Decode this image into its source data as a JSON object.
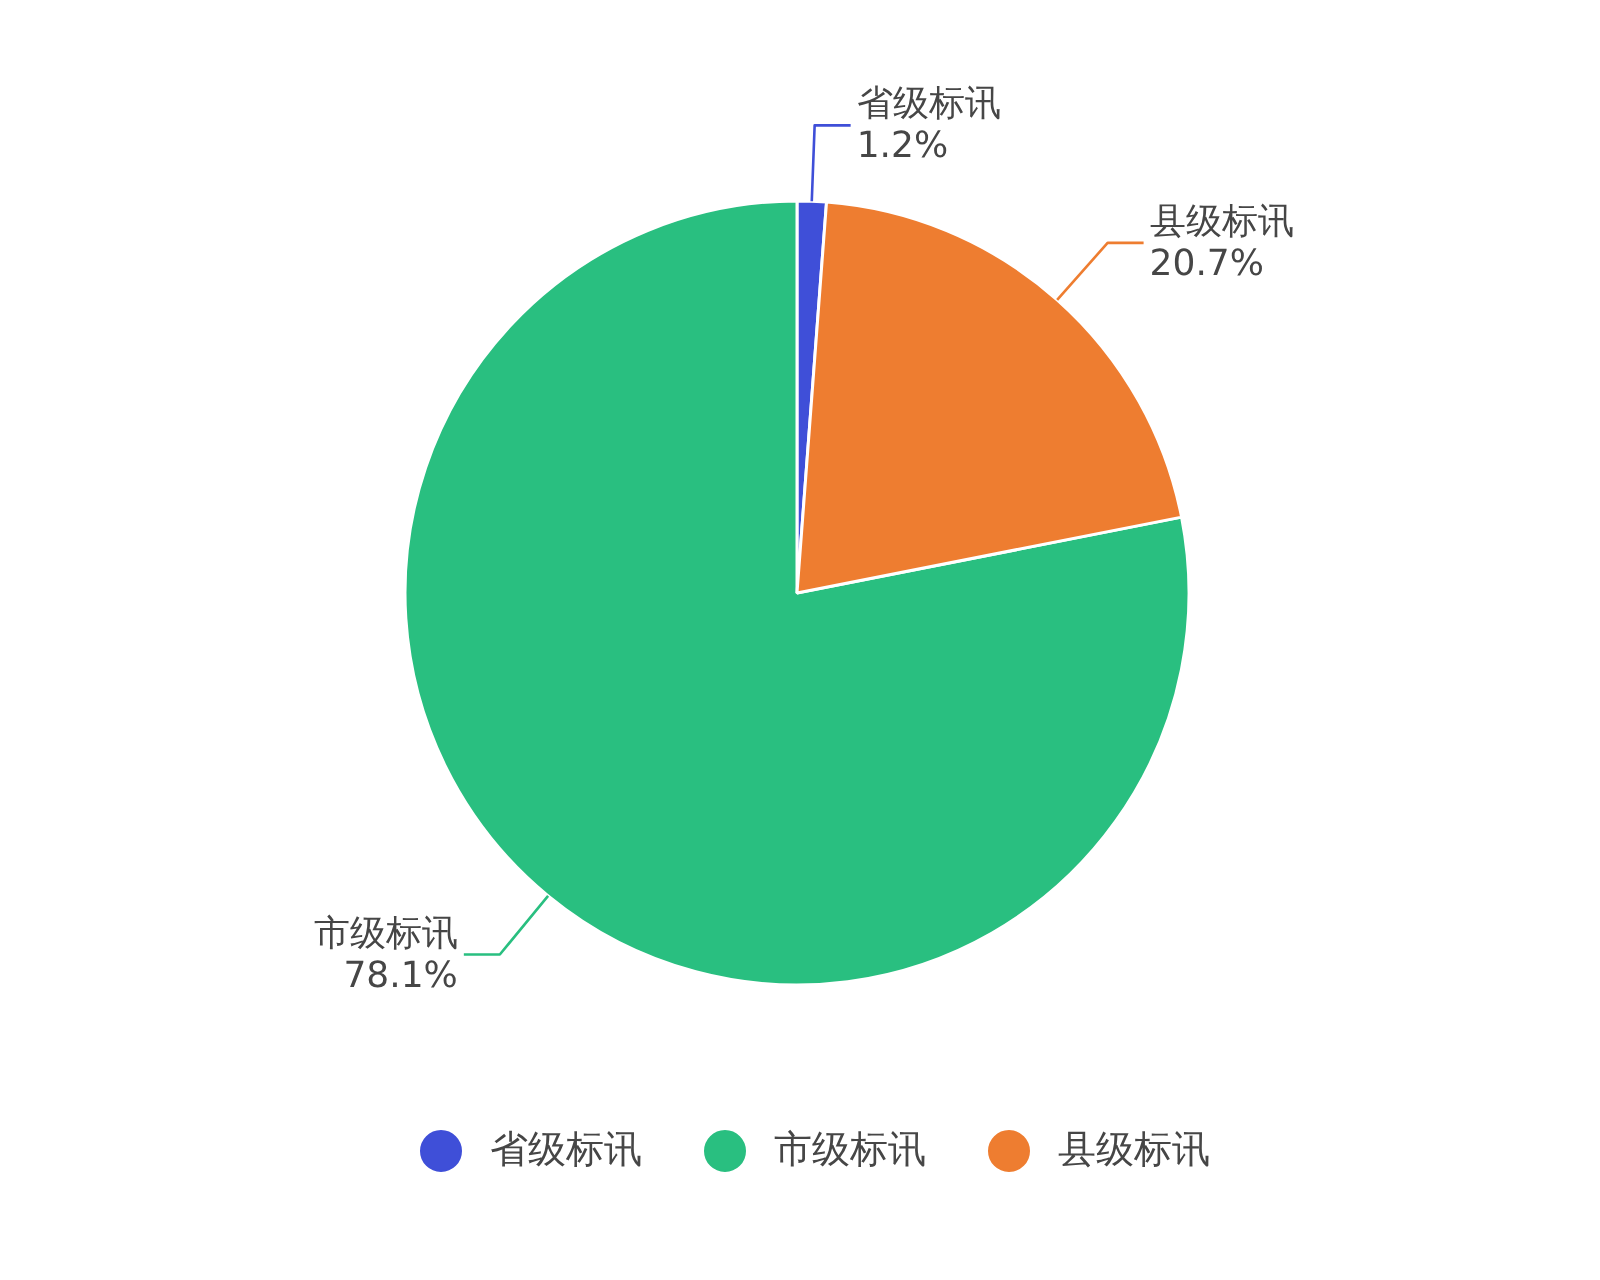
{
  "chart_data": {
    "type": "pie",
    "categories": [
      "省级标讯",
      "市级标讯",
      "县级标讯"
    ],
    "values": [
      1.2,
      78.1,
      20.7
    ],
    "colors": [
      "#3f4fd8",
      "#29bf80",
      "#ee7d30"
    ],
    "value_labels": [
      "1.2%",
      "78.1%",
      "20.7%"
    ],
    "legend": "bottom"
  }
}
